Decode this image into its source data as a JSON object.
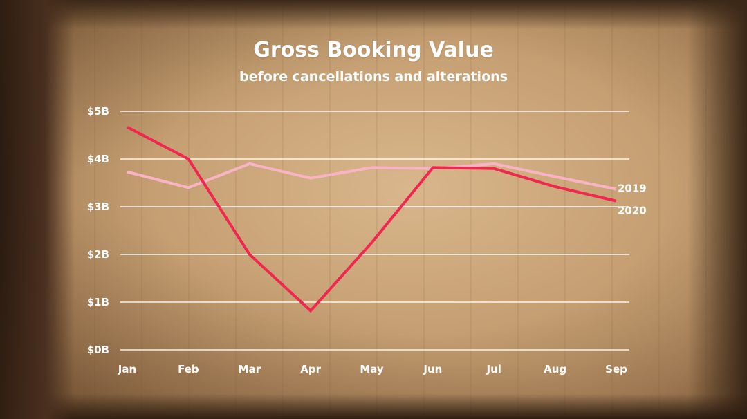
{
  "chart_data": {
    "type": "line",
    "title": "Gross Booking Value",
    "subtitle": "before cancellations and alterations",
    "categories": [
      "Jan",
      "Feb",
      "Mar",
      "Apr",
      "May",
      "Jun",
      "Jul",
      "Aug",
      "Sep"
    ],
    "y_ticks": [
      "$0B",
      "$1B",
      "$2B",
      "$3B",
      "$4B",
      "$5B"
    ],
    "ylim": [
      0,
      5
    ],
    "ylabel": "",
    "xlabel": "",
    "grid": true,
    "series": [
      {
        "name": "2019",
        "color": "#f8b4c4",
        "values": [
          3.73,
          3.4,
          3.9,
          3.6,
          3.82,
          3.8,
          3.9,
          3.63,
          3.37
        ]
      },
      {
        "name": "2020",
        "color": "#f0284f",
        "values": [
          4.67,
          4.0,
          2.0,
          0.82,
          2.25,
          3.82,
          3.8,
          3.42,
          3.12
        ]
      }
    ]
  }
}
